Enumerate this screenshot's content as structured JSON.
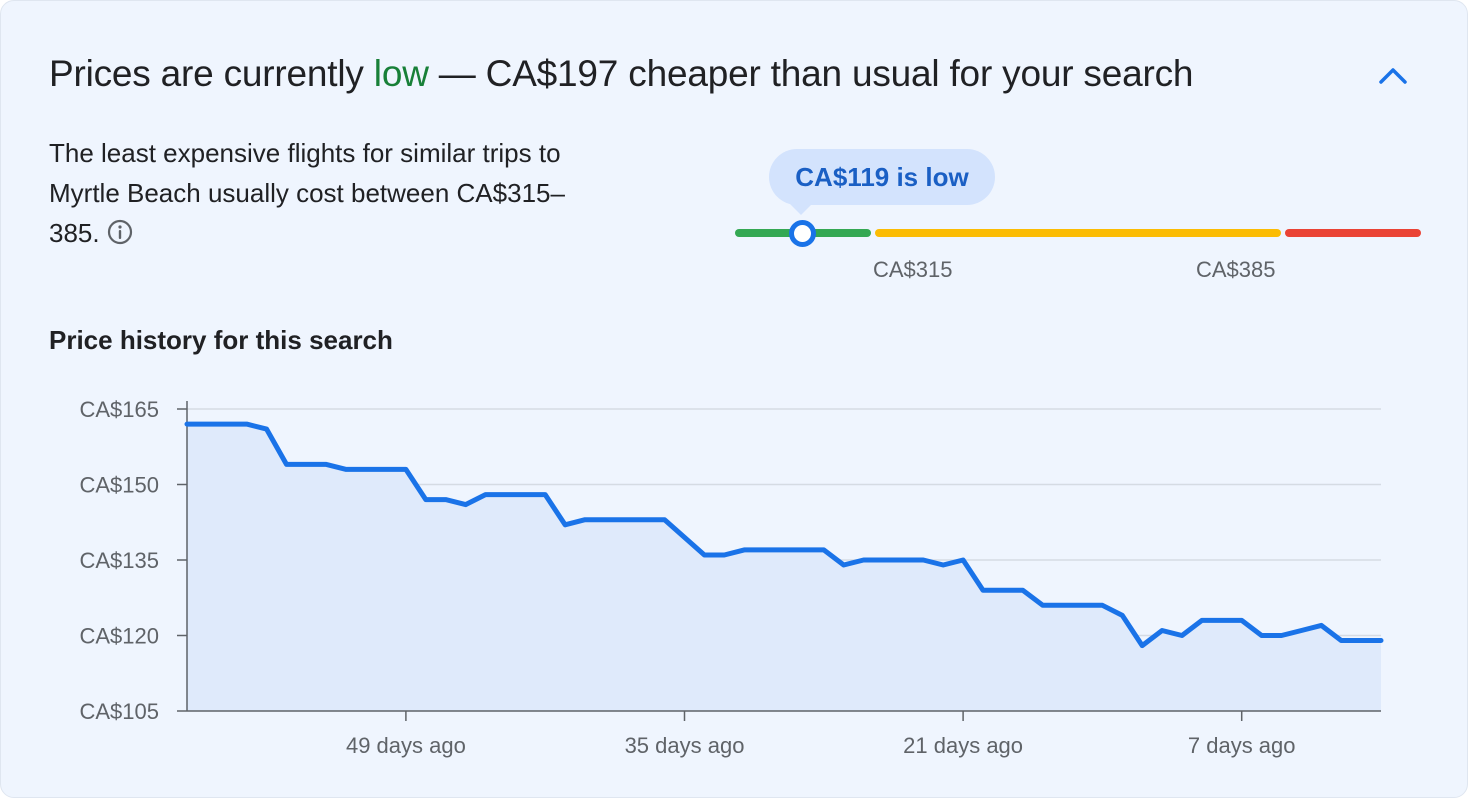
{
  "header": {
    "title_prefix": "Prices are currently ",
    "level_word": "low",
    "title_suffix": " — CA$197 cheaper than usual for your search",
    "collapse_icon": "chevron-up-icon"
  },
  "summary": {
    "description": "The least expensive flights for similar trips to Myrtle Beach usually cost between CA$315–385.",
    "info_icon": "info-icon"
  },
  "price_meter": {
    "tooltip": "CA$119 is low",
    "current_price": 119,
    "low_threshold_label": "CA$315",
    "high_threshold_label": "CA$385",
    "colors": {
      "low": "#34a853",
      "typical": "#fbbc04",
      "high": "#ea4335",
      "accent": "#1a73e8",
      "level_text": "#188038"
    }
  },
  "history": {
    "title": "Price history for this search"
  },
  "chart_data": {
    "type": "area",
    "title": "Price history for this search",
    "xlabel": "",
    "ylabel": "",
    "ylim": [
      105,
      165
    ],
    "yticks": [
      165,
      150,
      135,
      120,
      105
    ],
    "ytick_labels": [
      "CA$165",
      "CA$150",
      "CA$135",
      "CA$120",
      "CA$105"
    ],
    "x_range_days_ago": [
      60,
      0
    ],
    "xticks_days_ago": [
      49,
      35,
      21,
      7
    ],
    "xtick_labels": [
      "49 days ago",
      "35 days ago",
      "21 days ago",
      "7 days ago"
    ],
    "grid": true,
    "line_color": "#1a73e8",
    "fill_color": "#dfeafb",
    "series": [
      {
        "name": "Price",
        "days_ago": [
          60,
          59,
          58,
          57,
          56,
          55,
          54,
          53,
          52,
          51,
          50,
          49,
          48,
          47,
          46,
          45,
          44,
          43,
          42,
          41,
          40,
          39,
          38,
          37,
          36,
          35,
          34,
          33,
          32,
          31,
          30,
          29,
          28,
          27,
          26,
          25,
          24,
          23,
          22,
          21,
          20,
          19,
          18,
          17,
          16,
          15,
          14,
          13,
          12,
          11,
          10,
          9,
          8,
          7,
          6,
          5,
          4,
          3,
          2,
          1,
          0
        ],
        "values": [
          162,
          162,
          162,
          162,
          161,
          154,
          154,
          154,
          153,
          153,
          153,
          153,
          147,
          147,
          146,
          148,
          148,
          148,
          148,
          142,
          143,
          143,
          143,
          143,
          143,
          139.5,
          136,
          136,
          137,
          137,
          137,
          137,
          137,
          134,
          135,
          135,
          135,
          135,
          134,
          135,
          129,
          129,
          129,
          126,
          126,
          126,
          126,
          124,
          118,
          121,
          120,
          123,
          123,
          123,
          120,
          120,
          121,
          122,
          119,
          119,
          119
        ]
      }
    ]
  }
}
